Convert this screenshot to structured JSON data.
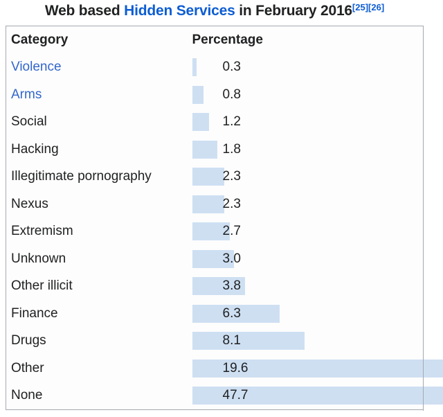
{
  "title": {
    "text_before_link": "Web based ",
    "link_text": "Hidden Services",
    "text_after_link": " in February 2016",
    "citations": [
      "[25]",
      "[26]"
    ]
  },
  "table": {
    "category_header": "Category",
    "percentage_header": "Percentage",
    "rows": [
      {
        "category": "Violence",
        "is_link": true,
        "value": 0.3,
        "display": "0.3"
      },
      {
        "category": "Arms",
        "is_link": true,
        "value": 0.8,
        "display": "0.8"
      },
      {
        "category": "Social",
        "is_link": false,
        "value": 1.2,
        "display": "1.2"
      },
      {
        "category": "Hacking",
        "is_link": false,
        "value": 1.8,
        "display": "1.8"
      },
      {
        "category": "Illegitimate pornography",
        "is_link": false,
        "value": 2.3,
        "display": "2.3"
      },
      {
        "category": "Nexus",
        "is_link": false,
        "value": 2.3,
        "display": "2.3"
      },
      {
        "category": "Extremism",
        "is_link": false,
        "value": 2.7,
        "display": "2.7"
      },
      {
        "category": "Unknown",
        "is_link": false,
        "value": 3.0,
        "display": "3.0"
      },
      {
        "category": "Other illicit",
        "is_link": false,
        "value": 3.8,
        "display": "3.8"
      },
      {
        "category": "Finance",
        "is_link": false,
        "value": 6.3,
        "display": "6.3"
      },
      {
        "category": "Drugs",
        "is_link": false,
        "value": 8.1,
        "display": "8.1"
      },
      {
        "category": "Other",
        "is_link": false,
        "value": 19.6,
        "display": "19.6"
      },
      {
        "category": "None",
        "is_link": false,
        "value": 47.7,
        "display": "47.7"
      }
    ]
  },
  "colors": {
    "bar_fill": "#cedff2",
    "table_border": "#a2a9b1",
    "text": "#202122",
    "row_link": "#3366cc",
    "title_link": "#0d5dd3",
    "citation": "#0d5dd3",
    "table_background": "#fdfdfd"
  },
  "chart_data": {
    "type": "bar",
    "orientation": "horizontal",
    "title": "Web based Hidden Services in February 2016",
    "category_label": "Category",
    "value_label": "Percentage",
    "unit": "percent",
    "categories": [
      "Violence",
      "Arms",
      "Social",
      "Hacking",
      "Illegitimate pornography",
      "Nexus",
      "Extremism",
      "Unknown",
      "Other illicit",
      "Finance",
      "Drugs",
      "Other",
      "None"
    ],
    "values": [
      0.3,
      0.8,
      1.2,
      1.8,
      2.3,
      2.3,
      2.7,
      3.0,
      3.8,
      6.3,
      8.1,
      19.6,
      47.7
    ],
    "bar_color": "#cedff2",
    "legend": false,
    "grid": false
  }
}
